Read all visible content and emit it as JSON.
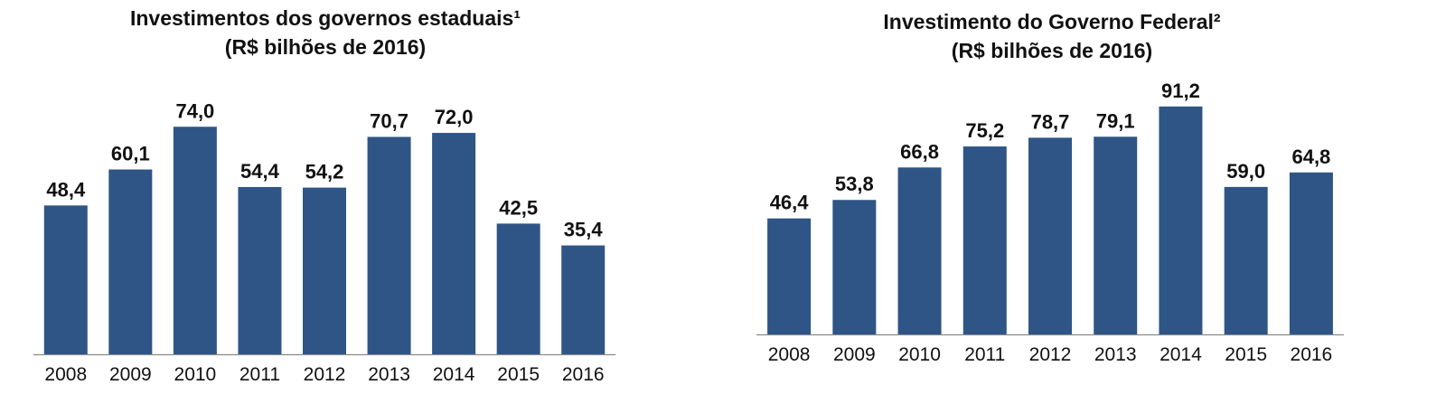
{
  "chart_data": [
    {
      "type": "bar",
      "title": "Investimentos dos governos estaduais¹",
      "subtitle": "(R$ bilhões de 2016)",
      "categories": [
        "2008",
        "2009",
        "2010",
        "2011",
        "2012",
        "2013",
        "2014",
        "2015",
        "2016"
      ],
      "values": [
        48.4,
        60.1,
        74.0,
        54.4,
        54.2,
        70.7,
        72.0,
        42.5,
        35.4
      ],
      "value_labels": [
        "48,4",
        "60,1",
        "74,0",
        "54,4",
        "54,2",
        "70,7",
        "72,0",
        "42,5",
        "35,4"
      ],
      "color": "#2E5585",
      "grid": false,
      "legend": "none"
    },
    {
      "type": "bar",
      "title": "Investimento do Governo Federal²",
      "subtitle": "(R$ bilhões de 2016)",
      "categories": [
        "2008",
        "2009",
        "2010",
        "2011",
        "2012",
        "2013",
        "2014",
        "2015",
        "2016"
      ],
      "values": [
        46.4,
        53.8,
        66.8,
        75.2,
        78.7,
        79.1,
        91.2,
        59.0,
        64.8
      ],
      "value_labels": [
        "46,4",
        "53,8",
        "66,8",
        "75,2",
        "78,7",
        "79,1",
        "91,2",
        "59,0",
        "64,8"
      ],
      "color": "#2E5585",
      "grid": false,
      "legend": "none"
    }
  ]
}
